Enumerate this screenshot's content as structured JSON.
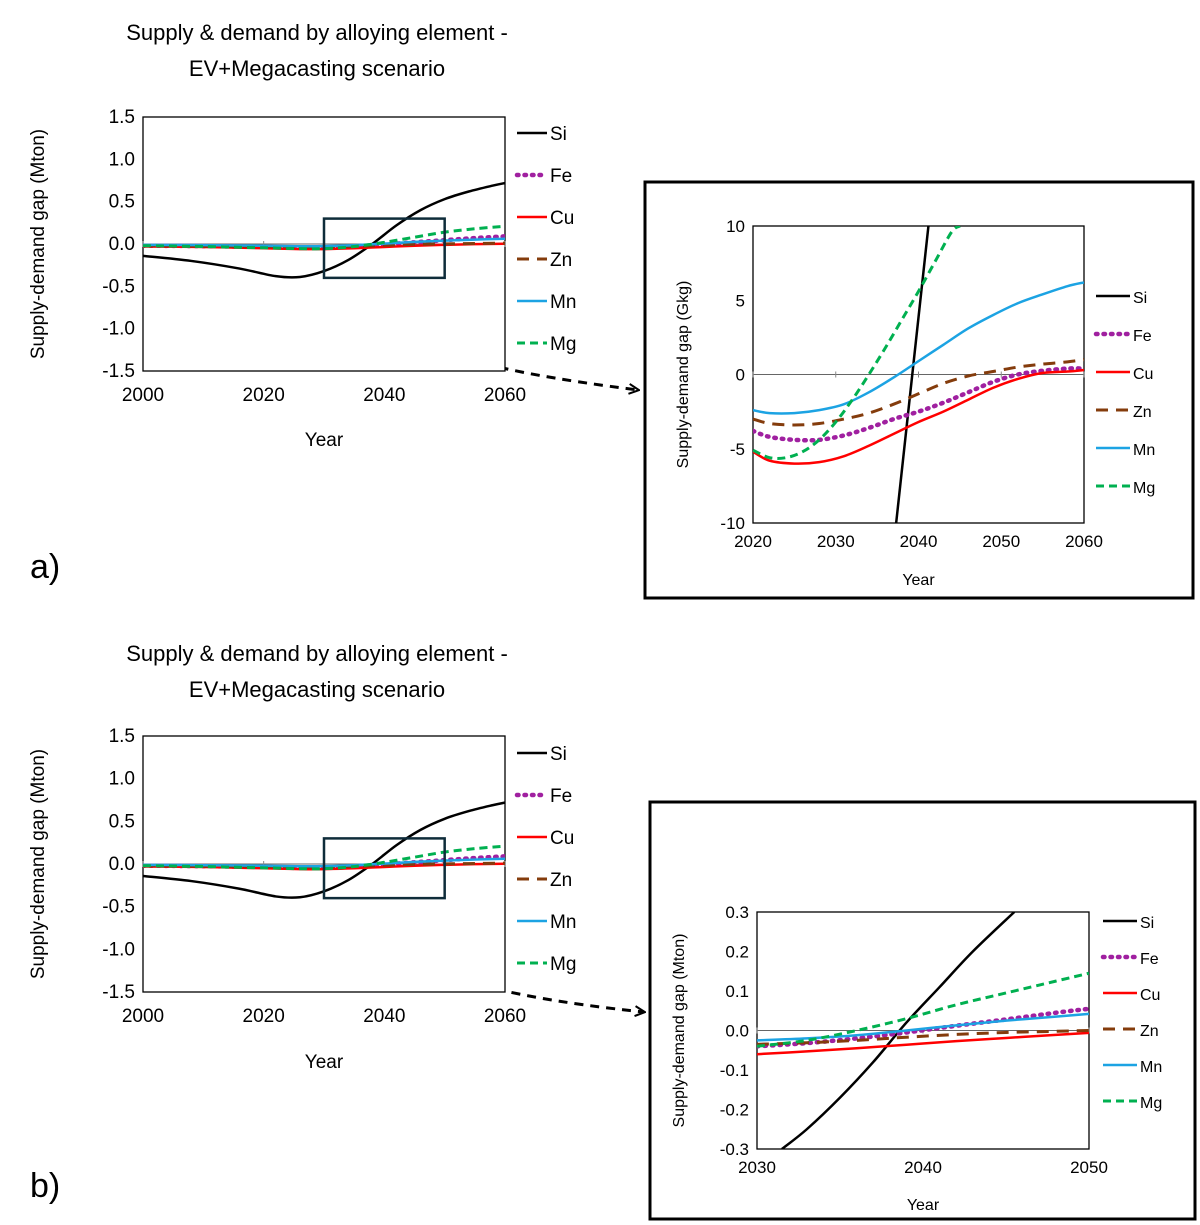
{
  "panel_labels": [
    "a)",
    "b)"
  ],
  "colors": {
    "Si": "#000000",
    "Fe": "#a020a0",
    "Cu": "#ff0000",
    "Zn": "#843c0c",
    "Mn": "#1ca3e3",
    "Mg": "#00b050",
    "frame": "#000000",
    "zoom_box": "#0f2c3a"
  },
  "chart_data": [
    {
      "id": "a-main",
      "type": "line",
      "title": [
        "Supply & demand by alloying element  -",
        "EV+Megacasting scenario"
      ],
      "xlabel": "Year",
      "ylabel": "Supply-demand gap (Mton)",
      "xlim": [
        2000,
        2060
      ],
      "ylim": [
        -1.5,
        1.5
      ],
      "xticks": [
        2000,
        2020,
        2040,
        2060
      ],
      "xtick_labels": [
        "2000",
        "2020",
        "2040",
        "2060"
      ],
      "yticks": [
        1.5,
        1.0,
        0.5,
        0.0,
        -0.5,
        -1.0,
        -1.5
      ],
      "ytick_labels": [
        "1.5",
        "1.0",
        "0.5",
        "0.0",
        "-0.5",
        "-1.0",
        "-1.5"
      ],
      "zoom_region": {
        "x": [
          2030,
          2050
        ],
        "y": [
          -0.4,
          0.3
        ]
      },
      "series": [
        {
          "name": "Si",
          "x": [
            2000,
            2008,
            2016,
            2022,
            2026,
            2030,
            2034,
            2038,
            2042,
            2046,
            2050,
            2054,
            2058,
            2060
          ],
          "values": [
            -0.14,
            -0.2,
            -0.29,
            -0.38,
            -0.39,
            -0.32,
            -0.19,
            0.0,
            0.22,
            0.4,
            0.53,
            0.62,
            0.69,
            0.72
          ]
        },
        {
          "name": "Fe",
          "x": [
            2000,
            2010,
            2020,
            2026,
            2030,
            2035,
            2040,
            2045,
            2050,
            2055,
            2060
          ],
          "values": [
            -0.02,
            -0.025,
            -0.035,
            -0.044,
            -0.044,
            -0.03,
            -0.005,
            0.02,
            0.045,
            0.07,
            0.09
          ]
        },
        {
          "name": "Cu",
          "x": [
            2000,
            2010,
            2020,
            2026,
            2030,
            2035,
            2040,
            2045,
            2050,
            2055,
            2060
          ],
          "values": [
            -0.03,
            -0.035,
            -0.05,
            -0.06,
            -0.06,
            -0.05,
            -0.035,
            -0.02,
            -0.01,
            -0.002,
            0.003
          ]
        },
        {
          "name": "Zn",
          "x": [
            2000,
            2010,
            2020,
            2026,
            2030,
            2035,
            2040,
            2045,
            2050,
            2055,
            2060
          ],
          "values": [
            -0.02,
            -0.025,
            -0.03,
            -0.034,
            -0.034,
            -0.028,
            -0.015,
            -0.003,
            0.002,
            0.006,
            0.01
          ]
        },
        {
          "name": "Mn",
          "x": [
            2000,
            2010,
            2020,
            2026,
            2030,
            2035,
            2040,
            2045,
            2050,
            2055,
            2060
          ],
          "values": [
            -0.01,
            -0.014,
            -0.02,
            -0.026,
            -0.025,
            -0.015,
            0.005,
            0.025,
            0.04,
            0.052,
            0.062
          ]
        },
        {
          "name": "Mg",
          "x": [
            2000,
            2010,
            2020,
            2026,
            2030,
            2035,
            2040,
            2045,
            2050,
            2055,
            2060
          ],
          "values": [
            -0.02,
            -0.03,
            -0.045,
            -0.055,
            -0.055,
            -0.03,
            0.02,
            0.08,
            0.14,
            0.18,
            0.21
          ]
        }
      ]
    },
    {
      "id": "a-inset",
      "type": "line",
      "title": "",
      "xlabel": "Year",
      "ylabel": "Supply-demand gap (Gkg)",
      "xlim": [
        2020,
        2060
      ],
      "ylim": [
        -10,
        10
      ],
      "xticks": [
        2020,
        2030,
        2040,
        2050,
        2060
      ],
      "xtick_labels": [
        "2020",
        "2030",
        "2040",
        "2050",
        "2060"
      ],
      "yticks": [
        10,
        5,
        0,
        -5,
        -10
      ],
      "ytick_labels": [
        "10",
        "5",
        "0",
        "-5",
        "-10"
      ],
      "series": [
        {
          "name": "Si",
          "x": [
            2037.3,
            2041.2
          ],
          "values": [
            -10,
            10
          ]
        },
        {
          "name": "Fe",
          "x": [
            2020,
            2022,
            2025,
            2028,
            2031,
            2034,
            2037,
            2040,
            2043,
            2046,
            2049,
            2052,
            2055,
            2058,
            2060
          ],
          "values": [
            -3.8,
            -4.2,
            -4.4,
            -4.4,
            -4.1,
            -3.6,
            -3.0,
            -2.5,
            -1.9,
            -1.2,
            -0.5,
            0.0,
            0.25,
            0.4,
            0.4
          ]
        },
        {
          "name": "Cu",
          "x": [
            2020,
            2022,
            2025,
            2028,
            2031,
            2034,
            2037,
            2040,
            2043,
            2046,
            2049,
            2052,
            2055,
            2058,
            2060
          ],
          "values": [
            -5.2,
            -5.8,
            -6.0,
            -5.9,
            -5.5,
            -4.8,
            -4.0,
            -3.2,
            -2.5,
            -1.7,
            -0.9,
            -0.3,
            0.1,
            0.2,
            0.3
          ]
        },
        {
          "name": "Zn",
          "x": [
            2020,
            2022,
            2025,
            2028,
            2031,
            2034,
            2037,
            2040,
            2043,
            2046,
            2049,
            2052,
            2055,
            2058,
            2060
          ],
          "values": [
            -3.0,
            -3.3,
            -3.4,
            -3.3,
            -3.0,
            -2.6,
            -2.0,
            -1.3,
            -0.6,
            -0.1,
            0.2,
            0.5,
            0.7,
            0.85,
            1.0
          ]
        },
        {
          "name": "Mn",
          "x": [
            2020,
            2022,
            2025,
            2028,
            2031,
            2034,
            2037,
            2040,
            2043,
            2046,
            2049,
            2052,
            2055,
            2058,
            2060
          ],
          "values": [
            -2.4,
            -2.6,
            -2.6,
            -2.4,
            -2.0,
            -1.2,
            -0.2,
            0.9,
            2.0,
            3.1,
            4.0,
            4.8,
            5.4,
            5.95,
            6.2
          ]
        },
        {
          "name": "Mg",
          "x": [
            2020,
            2022,
            2024,
            2026,
            2028,
            2030,
            2032,
            2034,
            2036,
            2038,
            2040,
            2042,
            2044,
            2045
          ],
          "values": [
            -5.1,
            -5.6,
            -5.6,
            -5.2,
            -4.4,
            -3.2,
            -1.7,
            0.0,
            1.8,
            3.7,
            5.6,
            7.6,
            9.6,
            10
          ]
        }
      ]
    },
    {
      "id": "b-main",
      "type": "line",
      "title": [
        "Supply & demand by alloying element  -",
        "EV+Megacasting scenario"
      ],
      "xlabel": "Year",
      "ylabel": "Supply-demand gap (Mton)",
      "xlim": [
        2000,
        2060
      ],
      "ylim": [
        -1.5,
        1.5
      ],
      "xticks": [
        2000,
        2020,
        2040,
        2060
      ],
      "xtick_labels": [
        "2000",
        "2020",
        "2040",
        "2060"
      ],
      "yticks": [
        1.5,
        1.0,
        0.5,
        0.0,
        -0.5,
        -1.0,
        -1.5
      ],
      "ytick_labels": [
        "1.5",
        "1.0",
        "0.5",
        "0.0",
        "-0.5",
        "-1.0",
        "-1.5"
      ],
      "zoom_region": {
        "x": [
          2030,
          2050
        ],
        "y": [
          -0.4,
          0.3
        ]
      },
      "series": [
        {
          "name": "Si",
          "x": [
            2000,
            2008,
            2016,
            2022,
            2026,
            2030,
            2034,
            2038,
            2042,
            2046,
            2050,
            2054,
            2058,
            2060
          ],
          "values": [
            -0.14,
            -0.2,
            -0.29,
            -0.38,
            -0.39,
            -0.32,
            -0.19,
            0.0,
            0.22,
            0.4,
            0.53,
            0.62,
            0.69,
            0.72
          ]
        },
        {
          "name": "Fe",
          "x": [
            2000,
            2010,
            2020,
            2026,
            2030,
            2035,
            2040,
            2045,
            2050,
            2055,
            2060
          ],
          "values": [
            -0.02,
            -0.025,
            -0.035,
            -0.044,
            -0.044,
            -0.03,
            -0.005,
            0.02,
            0.045,
            0.07,
            0.09
          ]
        },
        {
          "name": "Cu",
          "x": [
            2000,
            2010,
            2020,
            2026,
            2030,
            2035,
            2040,
            2045,
            2050,
            2055,
            2060
          ],
          "values": [
            -0.03,
            -0.035,
            -0.05,
            -0.06,
            -0.06,
            -0.05,
            -0.035,
            -0.02,
            -0.01,
            -0.002,
            0.003
          ]
        },
        {
          "name": "Zn",
          "x": [
            2000,
            2010,
            2020,
            2026,
            2030,
            2035,
            2040,
            2045,
            2050,
            2055,
            2060
          ],
          "values": [
            -0.02,
            -0.025,
            -0.03,
            -0.034,
            -0.034,
            -0.028,
            -0.015,
            -0.003,
            0.002,
            0.006,
            0.01
          ]
        },
        {
          "name": "Mn",
          "x": [
            2000,
            2010,
            2020,
            2026,
            2030,
            2035,
            2040,
            2045,
            2050,
            2055,
            2060
          ],
          "values": [
            -0.01,
            -0.014,
            -0.02,
            -0.026,
            -0.025,
            -0.015,
            0.005,
            0.025,
            0.04,
            0.052,
            0.062
          ]
        },
        {
          "name": "Mg",
          "x": [
            2000,
            2010,
            2020,
            2026,
            2030,
            2035,
            2040,
            2045,
            2050,
            2055,
            2060
          ],
          "values": [
            -0.02,
            -0.03,
            -0.045,
            -0.055,
            -0.055,
            -0.03,
            0.02,
            0.08,
            0.14,
            0.18,
            0.21
          ]
        }
      ]
    },
    {
      "id": "b-inset",
      "type": "line",
      "title": "",
      "xlabel": "Year",
      "ylabel": "Supply-demand gap (Mton)",
      "xlim": [
        2030,
        2050
      ],
      "ylim": [
        -0.3,
        0.3
      ],
      "xticks": [
        2030,
        2040,
        2050
      ],
      "xtick_labels": [
        "2030",
        "2040",
        "2050"
      ],
      "yticks": [
        0.3,
        0.2,
        0.1,
        0.0,
        -0.1,
        -0.2,
        -0.3
      ],
      "ytick_labels": [
        "0.3",
        "0.2",
        "0.1",
        "0.0",
        "-0.1",
        "-0.2",
        "-0.3"
      ],
      "series": [
        {
          "name": "Si",
          "x": [
            2031.5,
            2033,
            2035,
            2037,
            2039,
            2041,
            2043,
            2045.5
          ],
          "values": [
            -0.3,
            -0.25,
            -0.17,
            -0.08,
            0.02,
            0.11,
            0.2,
            0.3
          ]
        },
        {
          "name": "Fe",
          "x": [
            2030,
            2033,
            2036,
            2039,
            2042,
            2045,
            2048,
            2050
          ],
          "values": [
            -0.04,
            -0.032,
            -0.02,
            -0.005,
            0.012,
            0.028,
            0.045,
            0.055
          ]
        },
        {
          "name": "Cu",
          "x": [
            2030,
            2033,
            2036,
            2039,
            2042,
            2045,
            2048,
            2050
          ],
          "values": [
            -0.06,
            -0.053,
            -0.045,
            -0.036,
            -0.027,
            -0.019,
            -0.011,
            -0.006
          ]
        },
        {
          "name": "Zn",
          "x": [
            2030,
            2033,
            2036,
            2039,
            2042,
            2045,
            2048,
            2050
          ],
          "values": [
            -0.035,
            -0.031,
            -0.025,
            -0.017,
            -0.01,
            -0.005,
            -0.002,
            0.0
          ]
        },
        {
          "name": "Mn",
          "x": [
            2030,
            2033,
            2036,
            2039,
            2042,
            2045,
            2048,
            2050
          ],
          "values": [
            -0.025,
            -0.02,
            -0.012,
            0.0,
            0.013,
            0.025,
            0.035,
            0.042
          ]
        },
        {
          "name": "Mg",
          "x": [
            2030,
            2033,
            2036,
            2039,
            2042,
            2045,
            2048,
            2050
          ],
          "values": [
            -0.04,
            -0.025,
            0.0,
            0.03,
            0.065,
            0.095,
            0.125,
            0.145
          ]
        }
      ]
    }
  ]
}
